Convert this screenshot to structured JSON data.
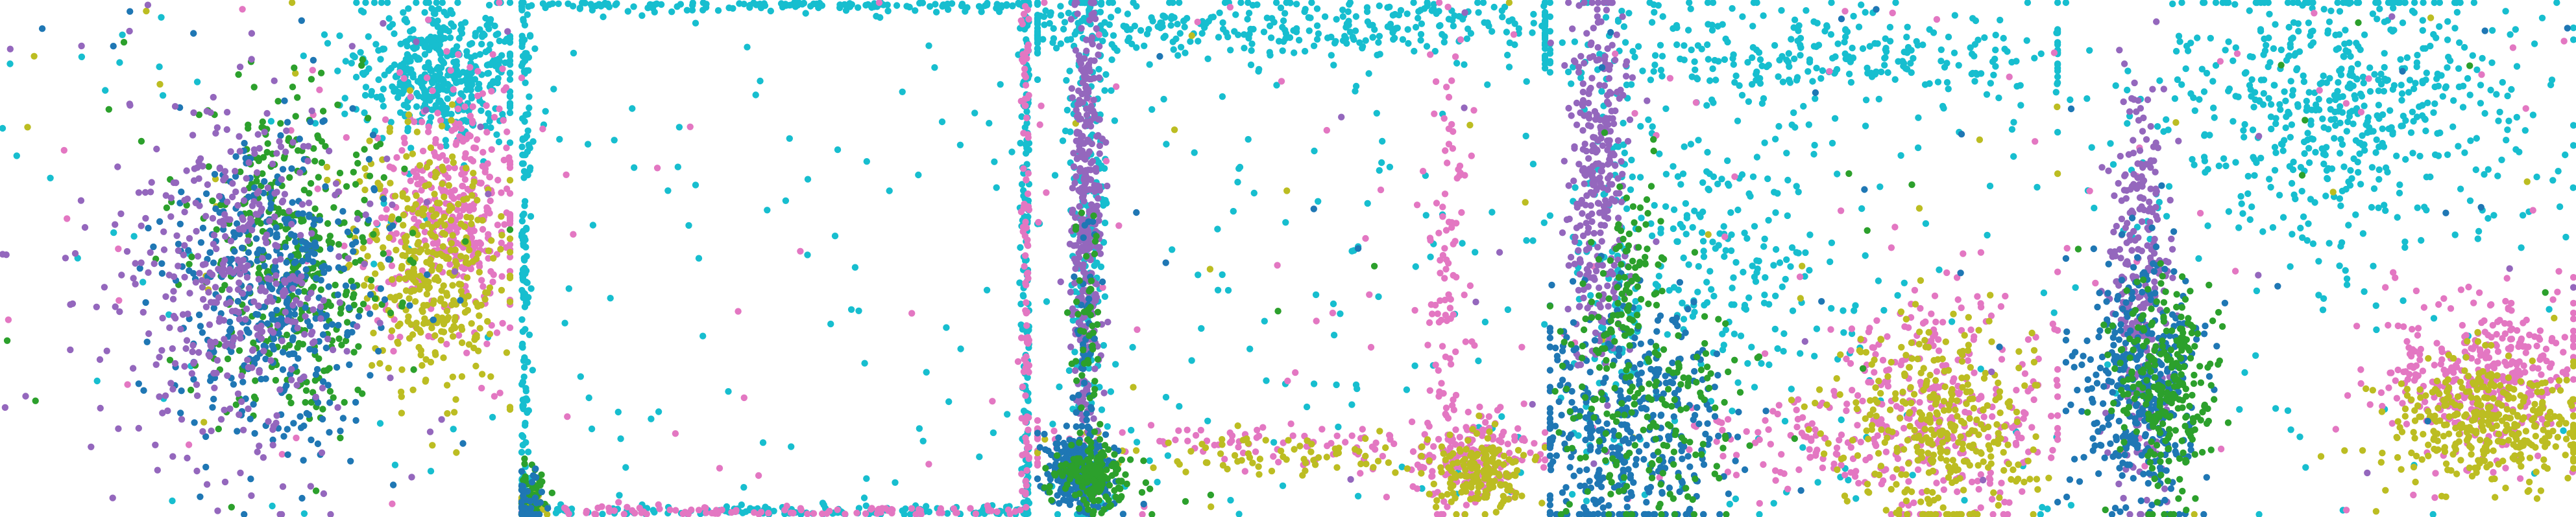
{
  "figure": {
    "colors": {
      "cyan": "#17becf",
      "pink": "#e377c2",
      "olive": "#bcbd22",
      "purple": "#9467bd",
      "blue": "#1f77b4",
      "green": "#2ca02c"
    }
  },
  "chart_data": [
    {
      "type": "scatter",
      "axes": "hidden",
      "grid": false,
      "legend": "none",
      "xlim": [
        0,
        1
      ],
      "ylim": [
        0,
        1
      ],
      "series": [
        {
          "color": "#17becf",
          "points": 500,
          "clusters": [
            [
              0.86,
              0.86,
              0.08,
              0.07,
              1.0
            ]
          ],
          "scatter_frac": 0.08
        },
        {
          "color": "#e377c2",
          "points": 420,
          "clusters": [
            [
              0.88,
              0.6,
              0.07,
              0.12,
              1.0
            ]
          ],
          "scatter_frac": 0.05
        },
        {
          "color": "#bcbd22",
          "points": 380,
          "clusters": [
            [
              0.84,
              0.48,
              0.07,
              0.12,
              1.0
            ]
          ],
          "scatter_frac": 0.05
        },
        {
          "color": "#2ca02c",
          "points": 420,
          "clusters": [
            [
              0.57,
              0.5,
              0.09,
              0.15,
              1.0
            ]
          ],
          "scatter_frac": 0.03
        },
        {
          "color": "#1f77b4",
          "points": 420,
          "clusters": [
            [
              0.53,
              0.44,
              0.1,
              0.16,
              1.0
            ]
          ],
          "scatter_frac": 0.03
        },
        {
          "color": "#9467bd",
          "points": 440,
          "clusters": [
            [
              0.45,
              0.46,
              0.11,
              0.16,
              1.0
            ]
          ],
          "scatter_frac": 0.1
        }
      ]
    },
    {
      "type": "scatter",
      "axes": "hidden",
      "grid": false,
      "legend": "none",
      "xlim": [
        0,
        1
      ],
      "ylim": [
        0,
        1
      ],
      "series": [
        {
          "color": "#17becf",
          "points": 700,
          "edges": [
            "top",
            "left",
            "right",
            "bottom"
          ],
          "scatter_frac": 0.12
        },
        {
          "color": "#e377c2",
          "points": 220,
          "edges": [
            "bottom",
            "right"
          ],
          "scatter_frac": 0.08
        },
        {
          "color": "#bcbd22",
          "points": 60,
          "clusters": [
            [
              0.02,
              0.02,
              0.015,
              0.015,
              1.0
            ]
          ],
          "scatter_frac": 0
        },
        {
          "color": "#2ca02c",
          "points": 60,
          "clusters": [
            [
              0.02,
              0.03,
              0.015,
              0.03,
              1.0
            ]
          ],
          "scatter_frac": 0
        },
        {
          "color": "#1f77b4",
          "points": 40,
          "clusters": [
            [
              0.02,
              0.03,
              0.015,
              0.03,
              1.0
            ]
          ],
          "scatter_frac": 0
        }
      ]
    },
    {
      "type": "scatter",
      "axes": "hidden",
      "grid": false,
      "legend": "none",
      "xlim": [
        0,
        1
      ],
      "ylim": [
        0,
        1
      ],
      "series": [
        {
          "color": "#17becf",
          "points": 700,
          "clusters": [
            [
              0.5,
              0.95,
              0.38,
              0.03,
              0.5
            ],
            [
              0.1,
              0.6,
              0.02,
              0.3,
              0.3
            ]
          ],
          "scatter_frac": 0.2
        },
        {
          "color": "#e377c2",
          "points": 400,
          "clusters": [
            [
              0.85,
              0.12,
              0.06,
              0.05,
              0.4
            ],
            [
              0.5,
              0.14,
              0.3,
              0.02,
              0.3
            ],
            [
              0.8,
              0.45,
              0.02,
              0.25,
              0.3
            ]
          ],
          "scatter_frac": 0.1
        },
        {
          "color": "#bcbd22",
          "points": 260,
          "clusters": [
            [
              0.86,
              0.09,
              0.05,
              0.04,
              0.7
            ],
            [
              0.45,
              0.12,
              0.2,
              0.02,
              0.3
            ]
          ],
          "scatter_frac": 0.05
        },
        {
          "color": "#9467bd",
          "points": 360,
          "clusters": [
            [
              0.1,
              0.55,
              0.015,
              0.22,
              1.0
            ]
          ],
          "scatter_frac": 0.02
        },
        {
          "color": "#1f77b4",
          "points": 300,
          "clusters": [
            [
              0.08,
              0.09,
              0.035,
              0.04,
              0.8
            ],
            [
              0.1,
              0.35,
              0.01,
              0.15,
              0.2
            ]
          ],
          "scatter_frac": 0.02
        },
        {
          "color": "#2ca02c",
          "points": 220,
          "clusters": [
            [
              0.12,
              0.08,
              0.04,
              0.03,
              0.7
            ],
            [
              0.1,
              0.3,
              0.015,
              0.15,
              0.3
            ]
          ],
          "scatter_frac": 0.02
        }
      ]
    },
    {
      "type": "scatter",
      "axes": "hidden",
      "grid": false,
      "legend": "none",
      "xlim": [
        0,
        1
      ],
      "ylim": [
        0,
        1
      ],
      "series": [
        {
          "color": "#17becf",
          "points": 700,
          "clusters": [
            [
              0.55,
              0.9,
              0.3,
              0.05,
              0.45
            ],
            [
              0.35,
              0.55,
              0.12,
              0.15,
              0.35
            ],
            [
              0.12,
              0.55,
              0.04,
              0.25,
              0.2
            ]
          ],
          "scatter_frac": 0.15
        },
        {
          "color": "#e377c2",
          "points": 450,
          "clusters": [
            [
              0.77,
              0.2,
              0.12,
              0.12,
              0.8
            ],
            [
              0.55,
              0.15,
              0.15,
              0.05,
              0.2
            ]
          ],
          "scatter_frac": 0.08
        },
        {
          "color": "#bcbd22",
          "points": 350,
          "clusters": [
            [
              0.75,
              0.18,
              0.1,
              0.1,
              1.0
            ]
          ],
          "scatter_frac": 0.03
        },
        {
          "color": "#9467bd",
          "points": 320,
          "clusters": [
            [
              0.1,
              0.65,
              0.03,
              0.18,
              1.0
            ]
          ],
          "scatter_frac": 0.02
        },
        {
          "color": "#1f77b4",
          "points": 420,
          "clusters": [
            [
              0.14,
              0.18,
              0.1,
              0.12,
              1.0
            ]
          ],
          "scatter_frac": 0.03
        },
        {
          "color": "#2ca02c",
          "points": 280,
          "clusters": [
            [
              0.2,
              0.18,
              0.09,
              0.12,
              0.7
            ],
            [
              0.15,
              0.45,
              0.04,
              0.1,
              0.3
            ]
          ],
          "scatter_frac": 0.03
        }
      ]
    },
    {
      "type": "scatter",
      "axes": "hidden",
      "grid": false,
      "legend": "none",
      "xlim": [
        0,
        1
      ],
      "ylim": [
        0,
        1
      ],
      "series": [
        {
          "color": "#17becf",
          "points": 650,
          "clusters": [
            [
              0.55,
              0.8,
              0.18,
              0.14,
              1.0
            ]
          ],
          "scatter_frac": 0.1
        },
        {
          "color": "#e377c2",
          "points": 400,
          "clusters": [
            [
              0.82,
              0.27,
              0.1,
              0.08,
              1.0
            ]
          ],
          "scatter_frac": 0.08
        },
        {
          "color": "#bcbd22",
          "points": 380,
          "clusters": [
            [
              0.82,
              0.18,
              0.1,
              0.06,
              1.0
            ]
          ],
          "scatter_frac": 0.03
        },
        {
          "color": "#9467bd",
          "points": 300,
          "clusters": [
            [
              0.15,
              0.45,
              0.03,
              0.2,
              1.0
            ]
          ],
          "scatter_frac": 0.02
        },
        {
          "color": "#1f77b4",
          "points": 380,
          "clusters": [
            [
              0.15,
              0.25,
              0.06,
              0.12,
              1.0
            ]
          ],
          "scatter_frac": 0.03
        },
        {
          "color": "#2ca02c",
          "points": 280,
          "clusters": [
            [
              0.2,
              0.25,
              0.05,
              0.1,
              1.0
            ]
          ],
          "scatter_frac": 0.03
        }
      ]
    }
  ]
}
